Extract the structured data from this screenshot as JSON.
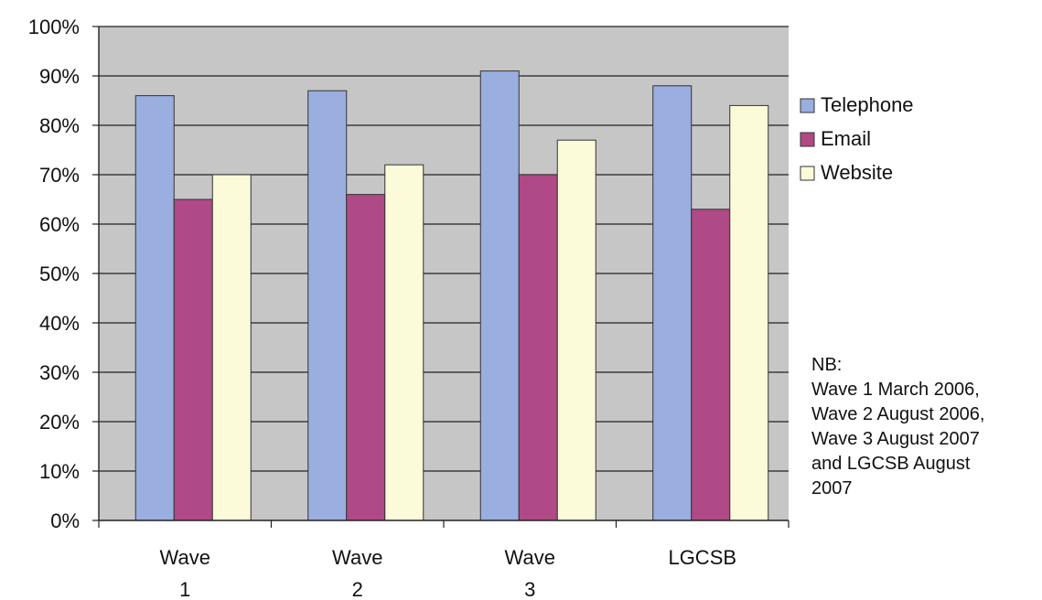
{
  "chart_data": {
    "type": "bar",
    "categories": [
      [
        "Wave",
        "1"
      ],
      [
        "Wave",
        "2"
      ],
      [
        "Wave",
        "3"
      ],
      [
        "LGCSB"
      ]
    ],
    "series": [
      {
        "name": "Telephone",
        "values": [
          86,
          87,
          91,
          88
        ],
        "color": "#9aaee0"
      },
      {
        "name": "Email",
        "values": [
          65,
          66,
          70,
          63
        ],
        "color": "#b04a86"
      },
      {
        "name": "Website",
        "values": [
          70,
          72,
          77,
          84
        ],
        "color": "#fbfad9"
      }
    ],
    "ylim": [
      0,
      100
    ],
    "yticks": [
      "0%",
      "10%",
      "20%",
      "30%",
      "40%",
      "50%",
      "60%",
      "70%",
      "80%",
      "90%",
      "100%"
    ],
    "grid": true,
    "plot_background": "#c6c6c6",
    "legend_position": "right"
  },
  "note": {
    "lines": [
      "NB:",
      "Wave 1 March 2006,",
      "Wave 2 August 2006,",
      "Wave 3 August 2007",
      "and LGCSB August",
      "2007"
    ]
  }
}
